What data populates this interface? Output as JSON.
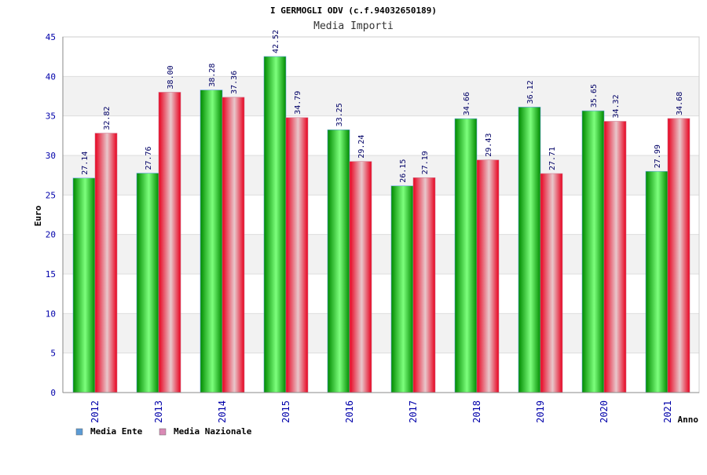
{
  "colors": {
    "series_ente": "#00b400",
    "series_nazionale": "#e8001e",
    "legend_ente": "#5b9bd5",
    "legend_nazionale": "#d98ab5",
    "tick_text": "#0000aa",
    "band_alt": "#f2f2f2"
  },
  "chart_data": {
    "type": "bar",
    "title": "I GERMOGLI ODV (c.f.94032650189)",
    "subtitle": "Media Importi",
    "xlabel": "Anno",
    "ylabel": "Euro",
    "ylim": [
      0,
      45
    ],
    "yticks": [
      0,
      5,
      10,
      15,
      20,
      25,
      30,
      35,
      40,
      45
    ],
    "grid": true,
    "legend": "bottom-left",
    "categories": [
      "2012",
      "2013",
      "2014",
      "2015",
      "2016",
      "2017",
      "2018",
      "2019",
      "2020",
      "2021"
    ],
    "series": [
      {
        "name": "Media Ente",
        "values": [
          27.14,
          27.76,
          38.28,
          42.52,
          33.25,
          26.15,
          34.66,
          36.12,
          35.65,
          27.99
        ],
        "labels": [
          "27.14",
          "27.76",
          "38.28",
          "42.52",
          "33.25",
          "26.15",
          "34.66",
          "36.12",
          "35.65",
          "27.99"
        ]
      },
      {
        "name": "Media Nazionale",
        "values": [
          32.82,
          38.0,
          37.36,
          34.79,
          29.24,
          27.19,
          29.43,
          27.71,
          34.32,
          34.68
        ],
        "labels": [
          "32.82",
          "38.00",
          "37.36",
          "34.79",
          "29.24",
          "27.19",
          "29.43",
          "27.71",
          "34.32",
          "34.68"
        ]
      }
    ]
  }
}
